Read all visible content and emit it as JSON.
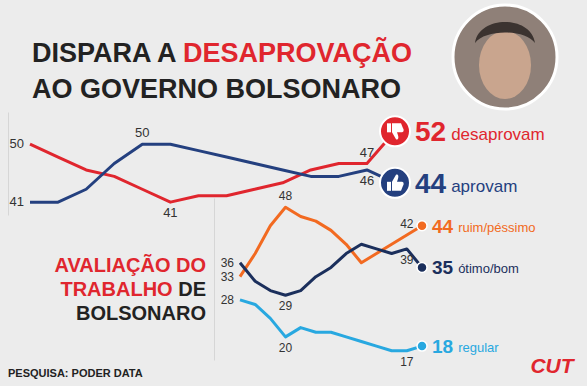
{
  "header": {
    "lines": [
      [
        {
          "text": "DISPARA A ",
          "color": "#222222"
        },
        {
          "text": "DESAPROVAÇÃO",
          "color": "#e0262e"
        }
      ],
      [
        {
          "text": "AO GOVERNO BOLSONARO",
          "color": "#222222"
        }
      ]
    ]
  },
  "section_title": {
    "lines": [
      [
        {
          "text": "AVALIAÇÃO DO",
          "color": "#e0262e"
        }
      ],
      [
        {
          "text": "TRABALHO",
          "color": "#e0262e"
        },
        {
          "text": " DE",
          "color": "#222222"
        }
      ],
      [
        {
          "text": "BOLSONARO",
          "color": "#222222"
        }
      ]
    ]
  },
  "footer": {
    "source": "PESQUISA: PODER DATA",
    "logo": "CUT"
  },
  "chart_data": [
    {
      "type": "line",
      "categories": [
        null,
        null,
        null,
        null,
        null,
        null,
        null,
        null,
        null,
        null,
        null,
        null,
        null,
        null
      ],
      "ylim": [
        39,
        55
      ],
      "yticks": [],
      "tick_labels": false,
      "grid": false,
      "series": [
        {
          "name": "desaprovam",
          "color": "#e0262e",
          "marker": "thumbs-down",
          "values": [
            50,
            48,
            46,
            45,
            43,
            41,
            42,
            42,
            43,
            44,
            46,
            47,
            47,
            52
          ],
          "value_labels": [
            "50",
            null,
            null,
            null,
            null,
            "41",
            null,
            null,
            null,
            null,
            null,
            null,
            "47",
            "52"
          ]
        },
        {
          "name": "aprovam",
          "color": "#24407f",
          "marker": "thumbs-up",
          "values": [
            41,
            41,
            43,
            47,
            50,
            50,
            49,
            48,
            47,
            46,
            45,
            45,
            46,
            44
          ],
          "value_labels": [
            "41",
            null,
            null,
            null,
            "50",
            null,
            null,
            null,
            null,
            null,
            null,
            null,
            "46",
            "44"
          ]
        }
      ]
    },
    {
      "type": "line",
      "categories": [
        null,
        null,
        null,
        null,
        null,
        null,
        null,
        null,
        null,
        null,
        null,
        null,
        null
      ],
      "ylim": [
        15,
        50
      ],
      "yticks": [],
      "tick_labels": false,
      "grid": false,
      "series": [
        {
          "name": "ruim/péssimo",
          "color": "#f26a21",
          "marker": "circle",
          "values": [
            33,
            38,
            44,
            48,
            46,
            45,
            43,
            40,
            36,
            38,
            40,
            42,
            44
          ],
          "value_labels": [
            "33",
            null,
            null,
            "48",
            null,
            null,
            null,
            null,
            null,
            null,
            null,
            "42",
            "44"
          ]
        },
        {
          "name": "ótimo/bom",
          "color": "#1b2f5c",
          "marker": "circle",
          "values": [
            36,
            32,
            30,
            29,
            30,
            33,
            35,
            38,
            40,
            39,
            38,
            39,
            35
          ],
          "value_labels": [
            "36",
            null,
            null,
            "29",
            null,
            null,
            null,
            null,
            null,
            null,
            null,
            "39",
            "35"
          ]
        },
        {
          "name": "regular",
          "color": "#28a8e0",
          "marker": "circle",
          "values": [
            28,
            27,
            24,
            20,
            22,
            21,
            21,
            20,
            19,
            18,
            17,
            17,
            18
          ],
          "value_labels": [
            "28",
            null,
            null,
            "20",
            null,
            null,
            null,
            null,
            null,
            null,
            null,
            "17",
            "18"
          ]
        }
      ]
    }
  ]
}
